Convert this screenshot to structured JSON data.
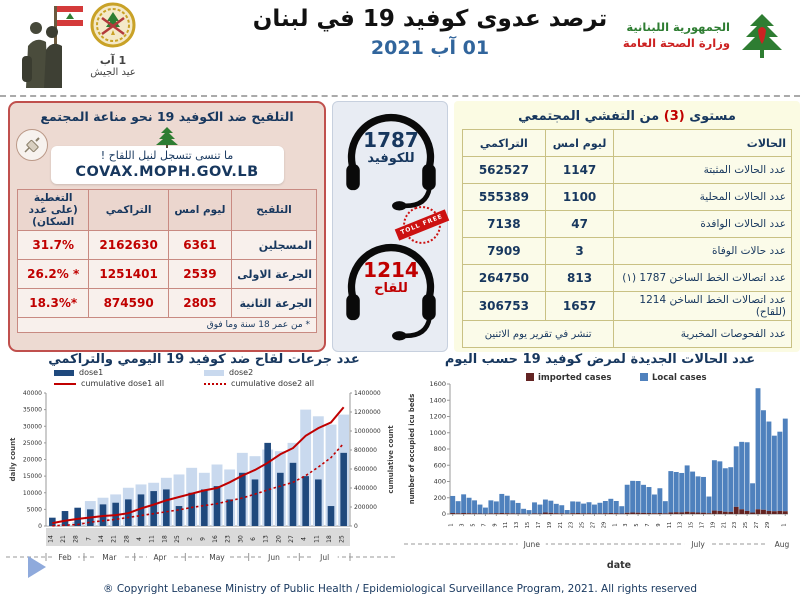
{
  "header": {
    "title": "ترصد عدوى كوفيد 19 في لبنان",
    "date": "01 آب 2021",
    "army": {
      "day_line1": "1 آب",
      "day_line2": "عيد الجيش"
    },
    "moph": {
      "line1": "الجمهورية اللبنانية",
      "line2": "وزارة الصحة العامة"
    }
  },
  "vaccination_panel": {
    "title": "التلقيح ضد الكوفيد 19  نحو مناعة المجتمع",
    "reminder_line": "ما تنسى تتسجل لنيل اللقاح !",
    "covax_url": "COVAX.MOPH.GOV.LB",
    "table": {
      "headers": [
        "التلقيح",
        "ليوم امس",
        "التراكمي",
        "التغطية (على عدد السكان)"
      ],
      "rows": [
        {
          "label": "المسجلين",
          "yesterday": "6361",
          "cumulative": "2162630",
          "coverage": "31.7%"
        },
        {
          "label": "الجرعة الاولى",
          "yesterday": "2539",
          "cumulative": "1251401",
          "coverage": "* 26.2%"
        },
        {
          "label": "الجرعة الثانية",
          "yesterday": "2805",
          "cumulative": "874590",
          "coverage": "*18.3%"
        }
      ],
      "footnote": "* من عمر 18 سنة وما فوق"
    }
  },
  "hotlines": {
    "covid": {
      "number": "1787",
      "label": "للكوفيد"
    },
    "vaccine": {
      "number": "1214",
      "label": "للقاح"
    },
    "stamp": "TOLL FREE"
  },
  "cases_panel": {
    "title_part1": "مستوى ",
    "title_level": "(3)",
    "title_part2": " من التفشي المجتمعي",
    "table": {
      "headers": [
        "الحالات",
        "ليوم امس",
        "التراكمي"
      ],
      "rows": [
        {
          "label": "عدد الحالات المثبتة",
          "yesterday": "1147",
          "cumulative": "562527"
        },
        {
          "label": "عدد الحالات المحلية",
          "yesterday": "1100",
          "cumulative": "555389"
        },
        {
          "label": "عدد الحالات الوافدة",
          "yesterday": "47",
          "cumulative": "7138"
        },
        {
          "label": "عدد حالات الوفاة",
          "yesterday": "3",
          "cumulative": "7909"
        },
        {
          "label": "عدد اتصالات الخط الساخن 1787  (١)",
          "yesterday": "813",
          "cumulative": "264750"
        },
        {
          "label": "عدد اتصالات الخط الساخن 1214 (للقاح)",
          "yesterday": "1657",
          "cumulative": "306753"
        }
      ],
      "last_row": {
        "label": "عدد الفحوصات المخبرية",
        "note": "تنشر في تقرير يوم الاثنين"
      }
    }
  },
  "chart_data": [
    {
      "type": "bar",
      "title": "عدد جرعات لقاح ضد كوفيد 19 اليومي والتراكمي",
      "ylabel_left": "daily count",
      "ylabel_right": "cumulative count",
      "ylim_left": [
        0,
        40000
      ],
      "ylim_right": [
        0,
        1400000
      ],
      "ytick_step_left": 5000,
      "ytick_step_right": 200000,
      "x": [
        "14",
        "21",
        "28",
        "7",
        "14",
        "21",
        "28",
        "4",
        "11",
        "18",
        "25",
        "2",
        "9",
        "16",
        "23",
        "30",
        "6",
        "13",
        "20",
        "27",
        "4",
        "11",
        "18",
        "25"
      ],
      "month_groups": [
        {
          "label": "Feb",
          "span": 3
        },
        {
          "label": "Mar",
          "span": 4
        },
        {
          "label": "Apr",
          "span": 4
        },
        {
          "label": "May",
          "span": 5
        },
        {
          "label": "Jun",
          "span": 4
        },
        {
          "label": "Jul",
          "span": 4
        }
      ],
      "series": [
        {
          "name": "dose1",
          "type": "bar",
          "color": "#1F497D",
          "values": [
            2500,
            4500,
            5500,
            5000,
            6500,
            7000,
            8000,
            9500,
            10500,
            11000,
            6000,
            10000,
            11000,
            12000,
            8000,
            16000,
            14000,
            25000,
            16000,
            19000,
            15000,
            14000,
            6000,
            22000
          ]
        },
        {
          "name": "dose2",
          "type": "bar",
          "color": "#C9D9EE",
          "values": [
            100,
            600,
            1200,
            7500,
            8500,
            9500,
            11500,
            12500,
            13000,
            14500,
            15500,
            17500,
            16000,
            18500,
            17000,
            22000,
            21000,
            23000,
            22500,
            25000,
            35000,
            33000,
            30500,
            33500
          ]
        },
        {
          "name": "cumulative dose1 all",
          "type": "line",
          "style": "solid",
          "color": "#C00000",
          "axis": "right",
          "values": [
            30000,
            55000,
            75000,
            90000,
            105000,
            115000,
            135000,
            185000,
            225000,
            270000,
            305000,
            340000,
            375000,
            400000,
            460000,
            530000,
            590000,
            665000,
            755000,
            820000,
            950000,
            1030000,
            1090000,
            1250000
          ]
        },
        {
          "name": "cumulative dose2 all",
          "type": "line",
          "style": "dotted",
          "color": "#C00000",
          "axis": "right",
          "values": [
            2000,
            8000,
            15000,
            40000,
            55000,
            70000,
            90000,
            110000,
            130000,
            150000,
            170000,
            195000,
            215000,
            235000,
            265000,
            295000,
            335000,
            380000,
            420000,
            460000,
            530000,
            620000,
            720000,
            870000
          ]
        }
      ]
    },
    {
      "type": "bar",
      "stacked": true,
      "title": "عدد الحالات الجديدة لمرض كوفيد 19 حسب اليوم",
      "xlabel": "date",
      "ylabel": "number of occupied icu beds",
      "ylim": [
        0,
        1600
      ],
      "ytick_step": 200,
      "month_groups": [
        {
          "label": "June",
          "days": 30
        },
        {
          "label": "July",
          "days": 31
        },
        {
          "label": "Aug",
          "days": 1
        }
      ],
      "series": [
        {
          "name": "imported cases",
          "color": "#632423",
          "values": [
            12,
            8,
            12,
            10,
            8,
            6,
            4,
            8,
            10,
            12,
            10,
            8,
            6,
            4,
            3,
            8,
            6,
            18,
            14,
            10,
            8,
            4,
            10,
            12,
            8,
            10,
            6,
            8,
            10,
            12,
            10,
            6,
            15,
            18,
            16,
            14,
            12,
            10,
            12,
            8,
            18,
            22,
            20,
            28,
            22,
            18,
            16,
            10,
            42,
            38,
            28,
            26,
            88,
            58,
            38,
            18,
            58,
            52,
            38,
            34,
            38,
            34
          ]
        },
        {
          "name": "Local cases",
          "color": "#4F81BD",
          "values": [
            210,
            150,
            230,
            190,
            160,
            110,
            75,
            160,
            145,
            235,
            215,
            160,
            130,
            60,
            45,
            135,
            110,
            160,
            150,
            115,
            100,
            45,
            145,
            140,
            120,
            135,
            110,
            130,
            150,
            175,
            150,
            90,
            345,
            390,
            390,
            345,
            320,
            230,
            305,
            150,
            510,
            495,
            485,
            570,
            500,
            445,
            440,
            205,
            620,
            610,
            535,
            550,
            745,
            830,
            845,
            360,
            1490,
            1225,
            1100,
            930,
            975,
            1140
          ]
        }
      ]
    }
  ],
  "footer": {
    "copyright": "® Copyright Lebanese Ministry of Public Health / Epidemiological Surveillance Program, 2021. All rights reserved"
  }
}
